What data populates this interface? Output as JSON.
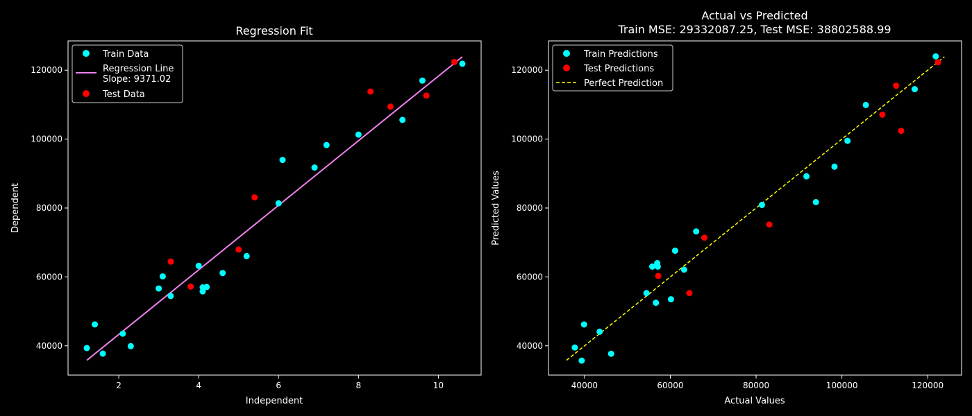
{
  "chart_data": [
    {
      "type": "scatter",
      "title": "Regression Fit",
      "xlabel": "Independent",
      "ylabel": "Dependent",
      "xlim": [
        0.73,
        11.07
      ],
      "ylim": [
        31500,
        128500
      ],
      "xticks": [
        2,
        4,
        6,
        8,
        10
      ],
      "yticks": [
        40000,
        60000,
        80000,
        100000,
        120000
      ],
      "grid": false,
      "legend_position": "top-left",
      "colors": {
        "train": "#00ffff",
        "line": "#ee82ee",
        "test": "#ff0000"
      },
      "series": [
        {
          "name": "Train Data",
          "kind": "scatter",
          "points": [
            [
              1.2,
              39343
            ],
            [
              1.4,
              46205
            ],
            [
              1.6,
              37731
            ],
            [
              2.1,
              43525
            ],
            [
              2.3,
              39891
            ],
            [
              3.0,
              56642
            ],
            [
              3.1,
              60150
            ],
            [
              3.3,
              54445
            ],
            [
              4.0,
              63218
            ],
            [
              4.1,
              55794
            ],
            [
              4.1,
              56957
            ],
            [
              4.2,
              57081
            ],
            [
              4.6,
              61111
            ],
            [
              5.2,
              66029
            ],
            [
              6.0,
              81363
            ],
            [
              6.1,
              93940
            ],
            [
              6.9,
              91738
            ],
            [
              7.2,
              98273
            ],
            [
              8.0,
              101302
            ],
            [
              9.1,
              105582
            ],
            [
              9.6,
              116969
            ],
            [
              10.6,
              121872
            ]
          ]
        },
        {
          "name": "Regression Line\nSlope: 9371.02",
          "kind": "line",
          "points": [
            [
              1.2,
              35800
            ],
            [
              10.6,
              123900
            ]
          ]
        },
        {
          "name": "Test Data",
          "kind": "scatter",
          "points": [
            [
              3.3,
              64445
            ],
            [
              3.8,
              57189
            ],
            [
              5.0,
              67938
            ],
            [
              5.4,
              83088
            ],
            [
              8.3,
              113812
            ],
            [
              8.8,
              109431
            ],
            [
              9.7,
              112635
            ],
            [
              10.4,
              122391
            ]
          ]
        }
      ]
    },
    {
      "type": "scatter",
      "title": "Actual vs Predicted\nTrain MSE: 29332087.25, Test MSE: 38802588.99",
      "xlabel": "Actual Values",
      "ylabel": "Predicted Values",
      "xlim": [
        31600,
        127900
      ],
      "ylim": [
        31500,
        128500
      ],
      "xticks": [
        40000,
        60000,
        80000,
        100000,
        120000
      ],
      "yticks": [
        40000,
        60000,
        80000,
        100000,
        120000
      ],
      "grid": false,
      "legend_position": "top-left",
      "colors": {
        "train": "#00ffff",
        "test": "#ff0000",
        "perfect": "#ffff00"
      },
      "series": [
        {
          "name": "Train Predictions",
          "kind": "scatter",
          "points": [
            [
              37731,
              39500
            ],
            [
              39343,
              35700
            ],
            [
              39891,
              46200
            ],
            [
              43525,
              44100
            ],
            [
              46205,
              37700
            ],
            [
              54445,
              55300
            ],
            [
              55794,
              63000
            ],
            [
              56642,
              52500
            ],
            [
              56957,
              64000
            ],
            [
              57081,
              63000
            ],
            [
              60150,
              53500
            ],
            [
              61111,
              67600
            ],
            [
              63218,
              62100
            ],
            [
              66029,
              73200
            ],
            [
              81363,
              80900
            ],
            [
              91738,
              89200
            ],
            [
              93940,
              81700
            ],
            [
              98273,
              92000
            ],
            [
              101302,
              99500
            ],
            [
              105582,
              109900
            ],
            [
              116969,
              114500
            ],
            [
              121872,
              124000
            ]
          ]
        },
        {
          "name": "Test Predictions",
          "kind": "scatter",
          "points": [
            [
              57189,
              60300
            ],
            [
              64445,
              55300
            ],
            [
              67938,
              71400
            ],
            [
              83088,
              75200
            ],
            [
              109431,
              107100
            ],
            [
              112635,
              115500
            ],
            [
              113812,
              102400
            ],
            [
              122391,
              122300
            ]
          ]
        },
        {
          "name": "Perfect Prediction",
          "kind": "dashed-line",
          "points": [
            [
              35800,
              35800
            ],
            [
              123900,
              123900
            ]
          ]
        }
      ]
    }
  ]
}
